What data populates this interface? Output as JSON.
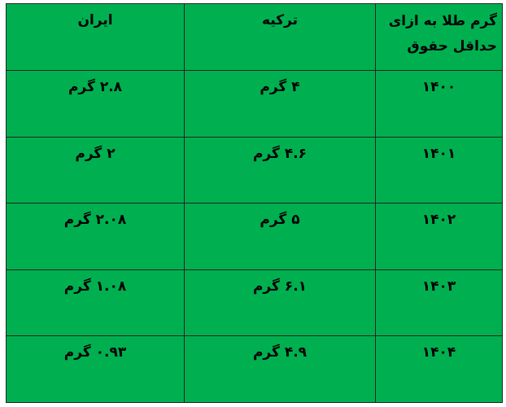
{
  "table": {
    "headers": [
      "گرم طلا به ازای حداقل حقوق",
      "ترکیه",
      "ایران"
    ],
    "rows": [
      [
        "۱۴۰۰",
        "۴ گرم",
        "۲.۸ گرم"
      ],
      [
        "۱۴۰۱",
        "۴.۶ گرم",
        "۲ گرم"
      ],
      [
        "۱۴۰۲",
        "۵ گرم",
        "۲.۰۸ گرم"
      ],
      [
        "۱۴۰۳",
        "۶.۱ گرم",
        "۱.۰۸ گرم"
      ],
      [
        "۱۴۰۴",
        "۴.۹ گرم",
        "۰.۹۳ گرم"
      ]
    ]
  },
  "colors": {
    "cell_background": "#00b050",
    "border": "#222222"
  }
}
